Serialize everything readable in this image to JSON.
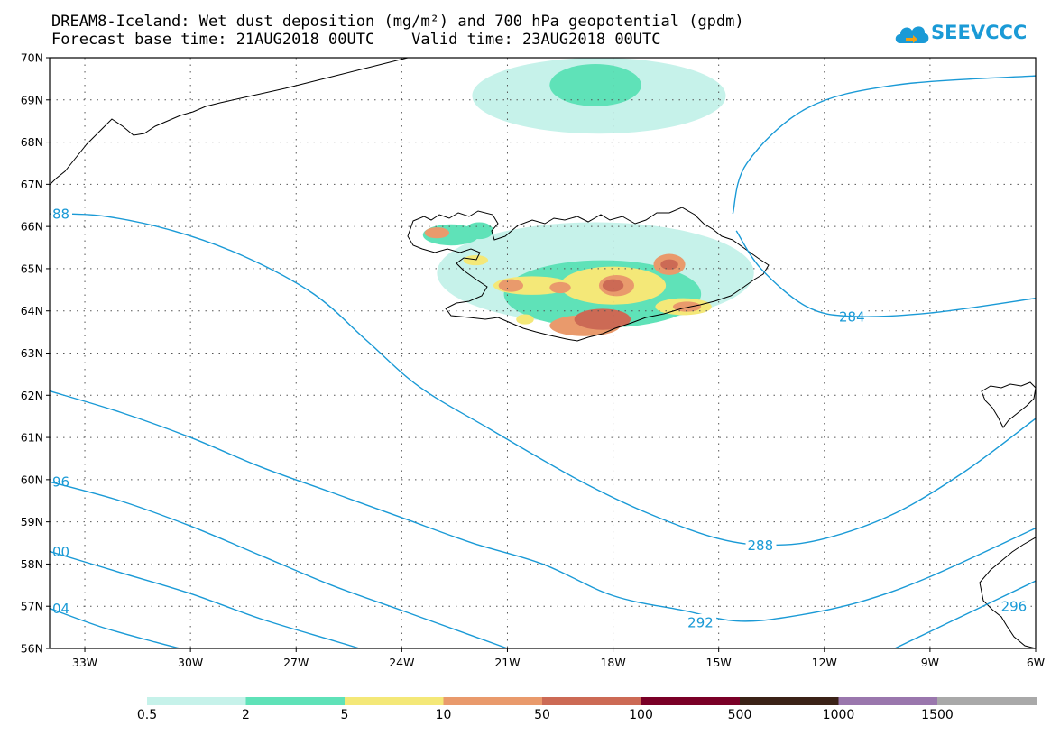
{
  "title_line1": "DREAM8-Iceland: Wet dust deposition (mg/m²) and 700 hPa geopotential (gpdm)",
  "title_line2": "Forecast base time: 21AUG2018 00UTC    Valid time: 23AUG2018 00UTC",
  "logo_text": "SEEVCCC",
  "map": {
    "lon_range": [
      -34.0,
      -6.0
    ],
    "lat_range": [
      56.0,
      70.0
    ],
    "lon_ticks": [
      {
        "value": -33,
        "label": "33W"
      },
      {
        "value": -30,
        "label": "30W"
      },
      {
        "value": -27,
        "label": "27W"
      },
      {
        "value": -24,
        "label": "24W"
      },
      {
        "value": -21,
        "label": "21W"
      },
      {
        "value": -18,
        "label": "18W"
      },
      {
        "value": -15,
        "label": "15W"
      },
      {
        "value": -12,
        "label": "12W"
      },
      {
        "value": -9,
        "label": "9W"
      },
      {
        "value": -6,
        "label": "6W"
      }
    ],
    "lat_ticks": [
      {
        "value": 70,
        "label": "70N"
      },
      {
        "value": 69,
        "label": "69N"
      },
      {
        "value": 68,
        "label": "68N"
      },
      {
        "value": 67,
        "label": "67N"
      },
      {
        "value": 66,
        "label": "66N"
      },
      {
        "value": 65,
        "label": "65N"
      },
      {
        "value": 64,
        "label": "64N"
      },
      {
        "value": 63,
        "label": "63N"
      },
      {
        "value": 62,
        "label": "62N"
      },
      {
        "value": 61,
        "label": "61N"
      },
      {
        "value": 60,
        "label": "60N"
      },
      {
        "value": 59,
        "label": "59N"
      },
      {
        "value": 58,
        "label": "58N"
      },
      {
        "value": 57,
        "label": "57N"
      },
      {
        "value": 56,
        "label": "56N"
      }
    ],
    "contour_color": "#1a9ad6",
    "contours": [
      {
        "label": "284",
        "label_pos": [
          -11.2,
          63.87
        ],
        "points": [
          [
            -14.6,
            66.3
          ],
          [
            -14.2,
            67.5
          ],
          [
            -12.5,
            68.8
          ],
          [
            -10.0,
            69.35
          ],
          [
            -6.0,
            69.57
          ]
        ]
      },
      {
        "label": "284",
        "label_pos": [
          -11.2,
          63.87
        ],
        "points": [
          [
            -14.5,
            65.9
          ],
          [
            -13.8,
            65.0
          ],
          [
            -12.5,
            64.1
          ],
          [
            -11.2,
            63.87
          ],
          [
            -9.0,
            63.95
          ],
          [
            -6.0,
            64.3
          ]
        ]
      },
      {
        "label": "88",
        "label_pos": [
          -33.8,
          66.3
        ],
        "points": [
          [
            -34.0,
            66.3
          ],
          [
            -32.5,
            66.25
          ],
          [
            -30.5,
            65.9
          ],
          [
            -28.5,
            65.3
          ],
          [
            -26.5,
            64.4
          ],
          [
            -25.0,
            63.3
          ],
          [
            -23.5,
            62.2
          ],
          [
            -21.5,
            61.2
          ],
          [
            -19.0,
            60.0
          ],
          [
            -17.0,
            59.2
          ],
          [
            -15.0,
            58.6
          ],
          [
            -13.5,
            58.45
          ],
          [
            -12.0,
            58.6
          ],
          [
            -10.0,
            59.2
          ],
          [
            -8.0,
            60.2
          ],
          [
            -6.0,
            61.45
          ]
        ]
      },
      {
        "label": "288",
        "label_pos": [
          -13.8,
          58.45
        ],
        "points": [
          [
            -34.0,
            66.3
          ]
        ]
      },
      {
        "label": "96",
        "label_pos": [
          -33.8,
          59.95
        ],
        "points": [
          [
            -34.0,
            62.1
          ],
          [
            -32.0,
            61.6
          ],
          [
            -30.0,
            61.0
          ],
          [
            -28.0,
            60.3
          ],
          [
            -26.0,
            59.7
          ],
          [
            -24.0,
            59.1
          ],
          [
            -22.0,
            58.5
          ],
          [
            -20.0,
            58.0
          ],
          [
            -18.0,
            57.25
          ],
          [
            -16.0,
            56.9
          ],
          [
            -14.5,
            56.65
          ],
          [
            -13.0,
            56.75
          ],
          [
            -11.0,
            57.1
          ],
          [
            -9.0,
            57.7
          ],
          [
            -6.0,
            58.85
          ]
        ]
      },
      {
        "label": "292",
        "label_pos": [
          -15.5,
          56.62
        ],
        "points": [
          [
            -34.0,
            62.1
          ]
        ]
      },
      {
        "label": "00",
        "label_pos": [
          -33.8,
          58.3
        ],
        "points": [
          [
            -34.0,
            59.95
          ],
          [
            -32.0,
            59.5
          ],
          [
            -30.0,
            58.9
          ],
          [
            -28.0,
            58.2
          ],
          [
            -26.0,
            57.5
          ],
          [
            -24.0,
            56.9
          ],
          [
            -22.0,
            56.3
          ],
          [
            -21.0,
            56.0
          ]
        ]
      },
      {
        "label": "04",
        "label_pos": [
          -33.8,
          56.95
        ],
        "points": [
          [
            -34.0,
            58.3
          ],
          [
            -32.0,
            57.8
          ],
          [
            -30.0,
            57.3
          ],
          [
            -28.0,
            56.7
          ],
          [
            -26.0,
            56.2
          ],
          [
            -25.2,
            56.0
          ]
        ]
      },
      {
        "label": "296",
        "label_pos": [
          -6.6,
          57.0
        ],
        "points": [
          [
            -34.0,
            56.95
          ],
          [
            -32.5,
            56.5
          ],
          [
            -31.0,
            56.15
          ],
          [
            -30.3,
            56.0
          ]
        ]
      },
      {
        "label": "",
        "label_pos": [
          -6.6,
          57.0
        ],
        "points": [
          [
            -10.0,
            56.0
          ],
          [
            -8.5,
            56.6
          ],
          [
            -7.0,
            57.2
          ],
          [
            -6.0,
            57.6
          ]
        ]
      }
    ]
  },
  "dust_deposition": {
    "colors": [
      "#c6f2ea",
      "#5fe2b8",
      "#f4e878",
      "#e99a6c",
      "#cc6a55",
      "#7a0027",
      "#3b2217",
      "#9a77ad",
      "#a9a9a9"
    ],
    "patches": [
      {
        "level": 0,
        "center": [
          -18.4,
          69.1
        ],
        "r": [
          3.6,
          0.9
        ]
      },
      {
        "level": 1,
        "center": [
          -18.5,
          69.35
        ],
        "r": [
          1.3,
          0.5
        ]
      },
      {
        "level": 0,
        "center": [
          -18.5,
          64.9
        ],
        "r": [
          4.5,
          1.2
        ]
      },
      {
        "level": 1,
        "center": [
          -18.3,
          64.4
        ],
        "r": [
          2.8,
          0.8
        ]
      },
      {
        "level": 2,
        "center": [
          -18.0,
          64.6
        ],
        "r": [
          1.5,
          0.45
        ]
      },
      {
        "level": 3,
        "center": [
          -18.8,
          63.65
        ],
        "r": [
          1.0,
          0.25
        ]
      },
      {
        "level": 4,
        "center": [
          -18.3,
          63.8
        ],
        "r": [
          0.8,
          0.25
        ]
      },
      {
        "level": 3,
        "center": [
          -17.9,
          64.6
        ],
        "r": [
          0.5,
          0.25
        ]
      },
      {
        "level": 4,
        "center": [
          -18.0,
          64.6
        ],
        "r": [
          0.3,
          0.15
        ]
      },
      {
        "level": 3,
        "center": [
          -16.4,
          65.1
        ],
        "r": [
          0.45,
          0.25
        ]
      },
      {
        "level": 4,
        "center": [
          -16.4,
          65.1
        ],
        "r": [
          0.25,
          0.12
        ]
      },
      {
        "level": 2,
        "center": [
          -20.3,
          64.6
        ],
        "r": [
          1.1,
          0.22
        ]
      },
      {
        "level": 3,
        "center": [
          -20.9,
          64.6
        ],
        "r": [
          0.35,
          0.15
        ]
      },
      {
        "level": 3,
        "center": [
          -19.5,
          64.55
        ],
        "r": [
          0.3,
          0.13
        ]
      },
      {
        "level": 2,
        "center": [
          -16.0,
          64.1
        ],
        "r": [
          0.8,
          0.2
        ]
      },
      {
        "level": 3,
        "center": [
          -15.9,
          64.1
        ],
        "r": [
          0.4,
          0.12
        ]
      },
      {
        "level": 1,
        "center": [
          -22.6,
          65.8
        ],
        "r": [
          0.8,
          0.25
        ]
      },
      {
        "level": 3,
        "center": [
          -23.0,
          65.85
        ],
        "r": [
          0.35,
          0.13
        ]
      },
      {
        "level": 2,
        "center": [
          -21.9,
          65.2
        ],
        "r": [
          0.35,
          0.12
        ]
      },
      {
        "level": 1,
        "center": [
          -21.8,
          65.9
        ],
        "r": [
          0.4,
          0.2
        ]
      },
      {
        "level": 2,
        "center": [
          -20.5,
          63.8
        ],
        "r": [
          0.25,
          0.12
        ]
      }
    ],
    "legend": {
      "labels": [
        "0.5",
        "2",
        "5",
        "10",
        "50",
        "100",
        "500",
        "1000",
        "1500"
      ]
    }
  }
}
